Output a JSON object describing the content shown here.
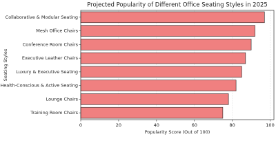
{
  "chart_data": {
    "type": "bar",
    "orientation": "horizontal",
    "title": "Projected Popularity of Different Office Seating Styles in 2025",
    "x_label": "Popularity Score (Out of 100)",
    "y_label": "Seating Styles",
    "categories": [
      "Collaborative & Modular Seating",
      "Mesh Office Chairs",
      "Conference Room Chairs",
      "Executive Leather Chairs",
      "Luxury & Executive Seating",
      "Health-Conscious & Active Seating",
      "Lounge Chairs",
      "Training Room Chairs"
    ],
    "values": [
      97,
      92,
      90,
      87,
      85,
      82,
      78,
      75
    ],
    "color": "#f08080",
    "edge_color": "#222222",
    "xlim": [
      0,
      102
    ],
    "xticks": [
      0,
      20,
      40,
      60,
      80,
      100
    ],
    "grid": true
  }
}
